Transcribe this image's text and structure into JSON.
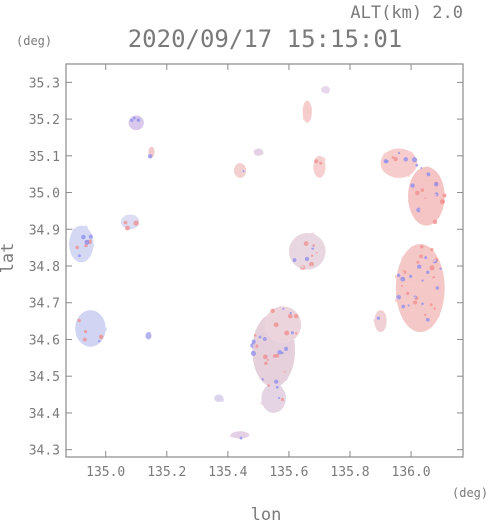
{
  "chart_data": {
    "type": "heatmap",
    "altitude_label": "ALT(km) 2.0",
    "title": "2020/09/17 15:15:01",
    "ylabel": "lat",
    "xlabel": "lon",
    "yunit": "(deg)",
    "xunit": "(deg)",
    "xlim": [
      134.87,
      136.17
    ],
    "ylim": [
      34.28,
      35.35
    ],
    "xticks": [
      "135.0",
      "135.2",
      "135.4",
      "135.6",
      "135.8",
      "136.0"
    ],
    "xtick_values": [
      135.0,
      135.2,
      135.4,
      135.6,
      135.8,
      136.0
    ],
    "yticks": [
      "34.3",
      "34.4",
      "34.5",
      "34.6",
      "34.7",
      "34.8",
      "34.9",
      "35.0",
      "35.1",
      "35.2",
      "35.3"
    ],
    "ytick_values": [
      34.3,
      34.4,
      34.5,
      34.6,
      34.7,
      34.8,
      34.9,
      35.0,
      35.1,
      35.2,
      35.3
    ],
    "grid": false,
    "colors": {
      "approaching": "#8c8cf0",
      "receding": "#f08c8c",
      "neutral": "#dcdcf0"
    },
    "echo_regions": [
      {
        "lon": 136.03,
        "lat": 34.74,
        "rx": 0.08,
        "ry": 0.12,
        "color": "#f5c8c8"
      },
      {
        "lon": 136.05,
        "lat": 34.99,
        "rx": 0.06,
        "ry": 0.08,
        "color": "#f5c4c4"
      },
      {
        "lon": 135.96,
        "lat": 35.08,
        "rx": 0.06,
        "ry": 0.04,
        "color": "#f7cccc"
      },
      {
        "lon": 135.55,
        "lat": 34.57,
        "rx": 0.07,
        "ry": 0.1,
        "color": "#e6d0dc"
      },
      {
        "lon": 135.58,
        "lat": 34.64,
        "rx": 0.06,
        "ry": 0.05,
        "color": "#ecd4dc"
      },
      {
        "lon": 135.66,
        "lat": 34.84,
        "rx": 0.06,
        "ry": 0.05,
        "color": "#e8d6e0"
      },
      {
        "lon": 135.55,
        "lat": 34.44,
        "rx": 0.04,
        "ry": 0.04,
        "color": "#e4d4e4"
      },
      {
        "lon": 134.92,
        "lat": 34.86,
        "rx": 0.04,
        "ry": 0.05,
        "color": "#d4d8f2"
      },
      {
        "lon": 134.95,
        "lat": 34.63,
        "rx": 0.05,
        "ry": 0.05,
        "color": "#d2d4f4"
      },
      {
        "lon": 135.08,
        "lat": 34.92,
        "rx": 0.03,
        "ry": 0.02,
        "color": "#dcdcf2"
      },
      {
        "lon": 135.7,
        "lat": 35.07,
        "rx": 0.02,
        "ry": 0.03,
        "color": "#f6d0d0"
      },
      {
        "lon": 135.66,
        "lat": 35.22,
        "rx": 0.015,
        "ry": 0.03,
        "color": "#f6cccc"
      },
      {
        "lon": 135.72,
        "lat": 35.28,
        "rx": 0.015,
        "ry": 0.01,
        "color": "#e8d8ec"
      },
      {
        "lon": 135.1,
        "lat": 35.19,
        "rx": 0.025,
        "ry": 0.02,
        "color": "#d8c8ec"
      },
      {
        "lon": 135.44,
        "lat": 35.06,
        "rx": 0.02,
        "ry": 0.02,
        "color": "#f2d0d0"
      },
      {
        "lon": 135.5,
        "lat": 35.11,
        "rx": 0.015,
        "ry": 0.01,
        "color": "#e4d0e4"
      },
      {
        "lon": 135.9,
        "lat": 34.65,
        "rx": 0.02,
        "ry": 0.03,
        "color": "#f0d0d4"
      },
      {
        "lon": 135.37,
        "lat": 34.44,
        "rx": 0.015,
        "ry": 0.01,
        "color": "#dcd4ec"
      },
      {
        "lon": 135.44,
        "lat": 34.34,
        "rx": 0.03,
        "ry": 0.01,
        "color": "#e4d0e4"
      },
      {
        "lon": 135.15,
        "lat": 35.11,
        "rx": 0.01,
        "ry": 0.015,
        "color": "#f2c8cc"
      },
      {
        "lon": 135.14,
        "lat": 34.61,
        "rx": 0.01,
        "ry": 0.01,
        "color": "#b4b4f0"
      }
    ]
  }
}
